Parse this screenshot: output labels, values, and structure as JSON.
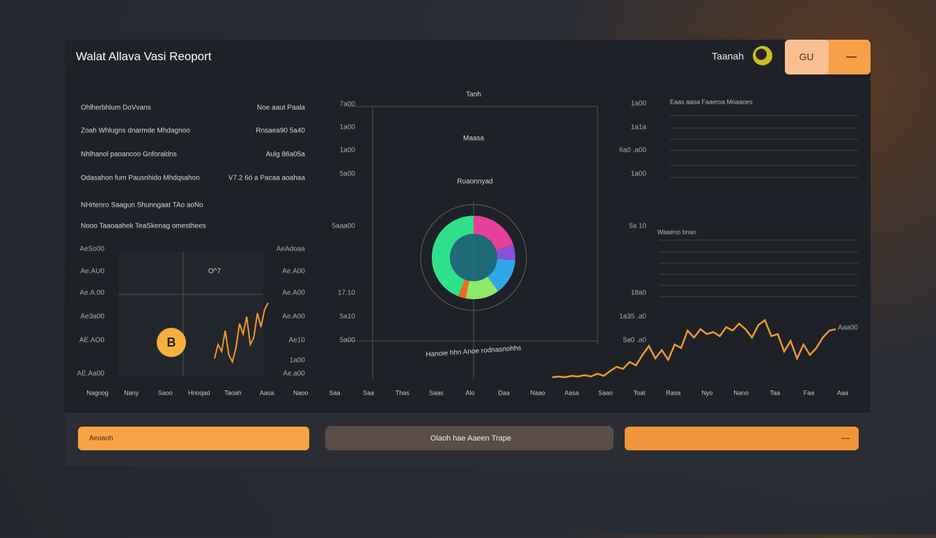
{
  "header": {
    "title": "Walat Allava Vasi Reoport",
    "user": "Taanah",
    "button": "GU"
  },
  "list": {
    "rows": [
      [
        "Ohlherbhlum DoVvans",
        "Noe aaut Paala"
      ],
      [
        "Zoah Whlugns dnarmde Mhdagnoo",
        "Rnsaea90 5a40"
      ],
      [
        "Nhlhanol paoancoo Gnforaldns",
        "Aulg 86a05a"
      ],
      [
        "Odasahon fum Pausnhido Mhdqsahon",
        "V7.2 6ó a Pacaa aoahaa"
      ],
      [
        "NHrtenro Saagun Shunngaat TAo aoNo"
      ],
      [
        "Nooo Taaoaahek TeaSkenag omesthees"
      ]
    ]
  },
  "mini_chart": {
    "left_labels": [
      "AeSo00",
      "Ae.AU0",
      "Ae.A.00",
      "Ae3a00",
      "AE.AO0",
      "AE.Aa00"
    ],
    "right_labels": [
      "AeAdoaa",
      "Ae.A00",
      "Ae.A00",
      "Ae.A00",
      "Ae10",
      "1a00",
      "Ae.a00"
    ],
    "label": "O^7",
    "badge": "B",
    "values": [
      10,
      30,
      20,
      50,
      15,
      5,
      25,
      60,
      45,
      70,
      30,
      40,
      75,
      55,
      80,
      90
    ]
  },
  "center_chart": {
    "title": "Tanh",
    "subtitle": "Maasa",
    "label": "Ruaonnyad",
    "caption": "Hanoie hhn Anoe rodnasnohhs",
    "left_labels": [
      "7a00",
      "1a00",
      "1a00",
      "5a00",
      "5aaa00",
      "17.10",
      "5a10",
      "5a00"
    ],
    "right_labels": [
      "1a00",
      "1a1a",
      "6a0 .a00",
      "1a00",
      "5a 10",
      "18a0",
      "1a35 .a0",
      "5a0 .a0"
    ],
    "segments": [
      {
        "value": 20,
        "color": "#e83f9a"
      },
      {
        "value": 6,
        "color": "#8a4fd8"
      },
      {
        "value": 14,
        "color": "#2fa8e8"
      },
      {
        "value": 13,
        "color": "#8ee86a"
      },
      {
        "value": 3,
        "color": "#f26a22"
      },
      {
        "value": 44,
        "color": "#2fe08a"
      }
    ]
  },
  "right_panel": {
    "heading": "Eaas aaoa Faaeroa Moaaoes",
    "heading2": "Waaeno bnan",
    "value_label": "Aaa00",
    "values": [
      3,
      4,
      3,
      5,
      4,
      6,
      4,
      8,
      5,
      12,
      18,
      15,
      25,
      20,
      35,
      48,
      30,
      42,
      28,
      50,
      45,
      70,
      60,
      72,
      65,
      68,
      62,
      75,
      70,
      80,
      72,
      60,
      78,
      85,
      62,
      65,
      40,
      55,
      30,
      50,
      35,
      45,
      60,
      70,
      72
    ]
  },
  "x_labels": [
    "Nagnog",
    "Nany",
    "Saoo",
    "Hnoqad",
    "Taoah",
    "Aasa",
    "Naoo",
    "Saa",
    "Saa",
    "Thas",
    "Saas",
    "Alo",
    "Daa",
    "Naao",
    "Aasa",
    "Saao",
    "Toat",
    "Rasa",
    "Nyo",
    "Nano",
    "Taa",
    "Faa",
    "Aaa"
  ],
  "footer": {
    "left": "Aeoaoh",
    "center": "Olaoh hae Aaeen Trape"
  }
}
